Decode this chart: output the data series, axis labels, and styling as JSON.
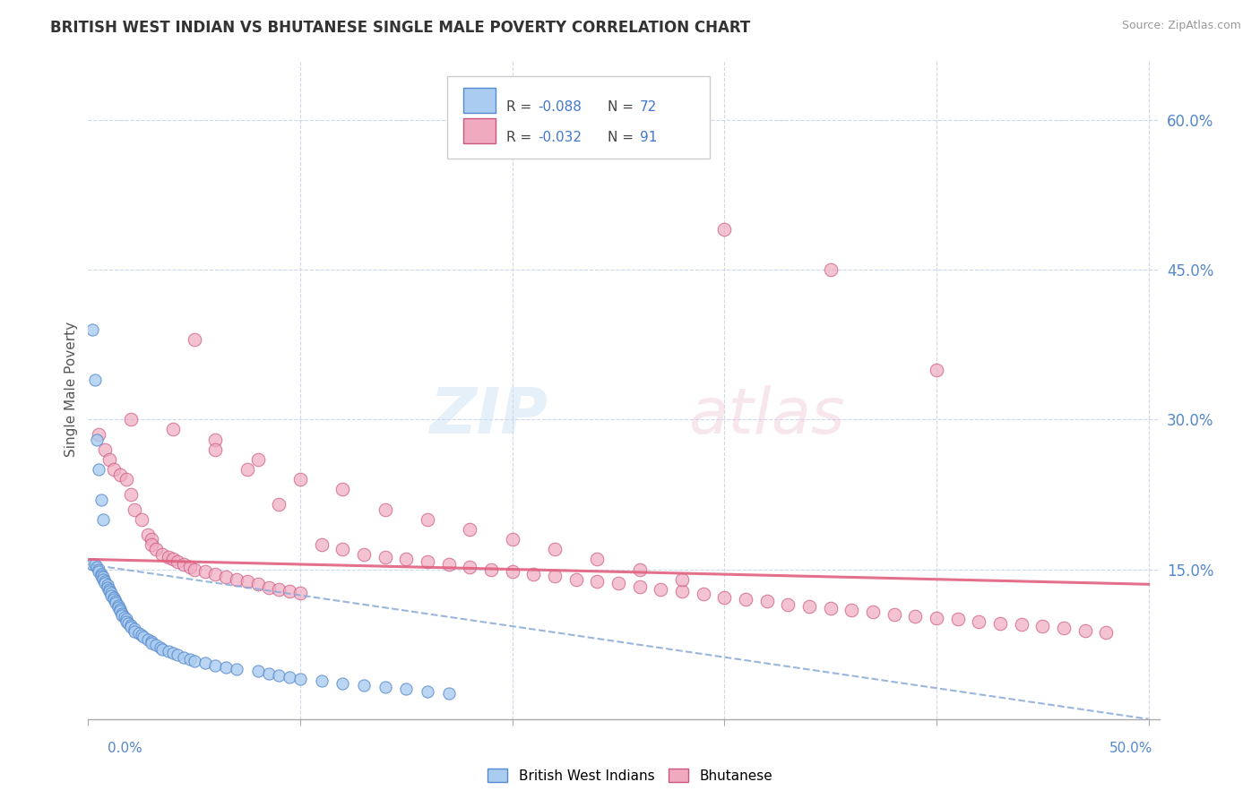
{
  "title": "BRITISH WEST INDIAN VS BHUTANESE SINGLE MALE POVERTY CORRELATION CHART",
  "source": "Source: ZipAtlas.com",
  "ylabel": "Single Male Poverty",
  "y_tick_values": [
    0.15,
    0.3,
    0.45,
    0.6
  ],
  "x_tick_values": [
    0.0,
    0.1,
    0.2,
    0.3,
    0.4,
    0.5
  ],
  "legend_r_bwi": "-0.088",
  "legend_n_bwi": "72",
  "legend_r_bhu": "-0.032",
  "legend_n_bhu": "91",
  "bwi_color": "#aaccf0",
  "bhu_color": "#f0aac0",
  "bwi_edge_color": "#5588cc",
  "bhu_edge_color": "#cc5580",
  "trend_bwi_color": "#88aad8",
  "trend_bhu_color": "#e06080",
  "background_color": "#ffffff",
  "grid_color": "#c8d4e8",
  "title_color": "#333333",
  "axis_label_color": "#5588cc",
  "right_label_color": "#5588cc"
}
